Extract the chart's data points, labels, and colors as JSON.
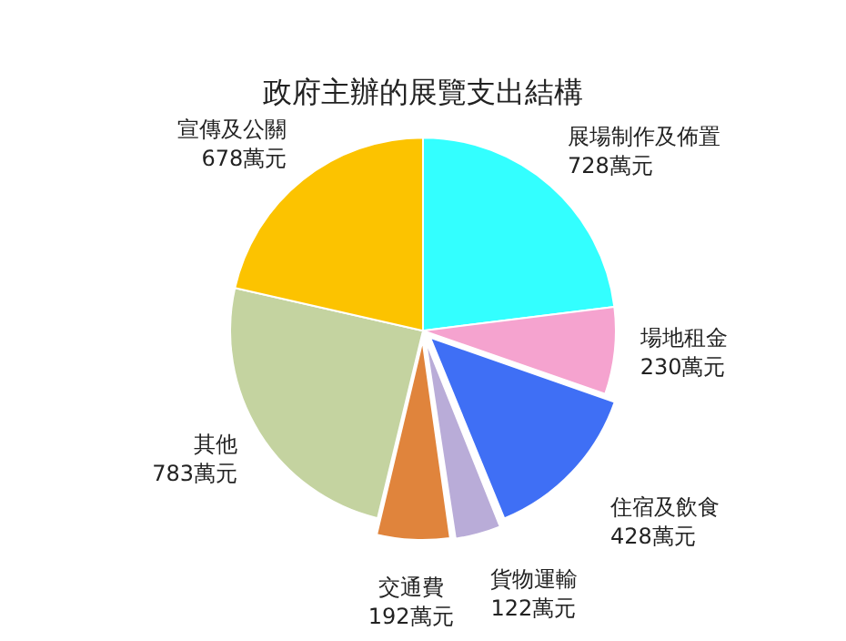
{
  "chart_data": {
    "type": "pie",
    "title": "政府主辦的展覽支出結構",
    "categories": [
      "展場制作及佈置",
      "場地租金",
      "住宿及飲食",
      "貨物運輸",
      "交通費",
      "其他",
      "宣傳及公關"
    ],
    "values": [
      728,
      230,
      428,
      122,
      192,
      783,
      678
    ],
    "value_labels": [
      "728萬元",
      "230萬元",
      "428萬元",
      "122萬元",
      "192萬元",
      "783萬元",
      "678萬元"
    ],
    "colors": [
      "#33ffff",
      "#f5a3cf",
      "#3f6ff5",
      "#b9acd8",
      "#e0843c",
      "#c4d3a0",
      "#fcc300"
    ],
    "legend": false
  }
}
